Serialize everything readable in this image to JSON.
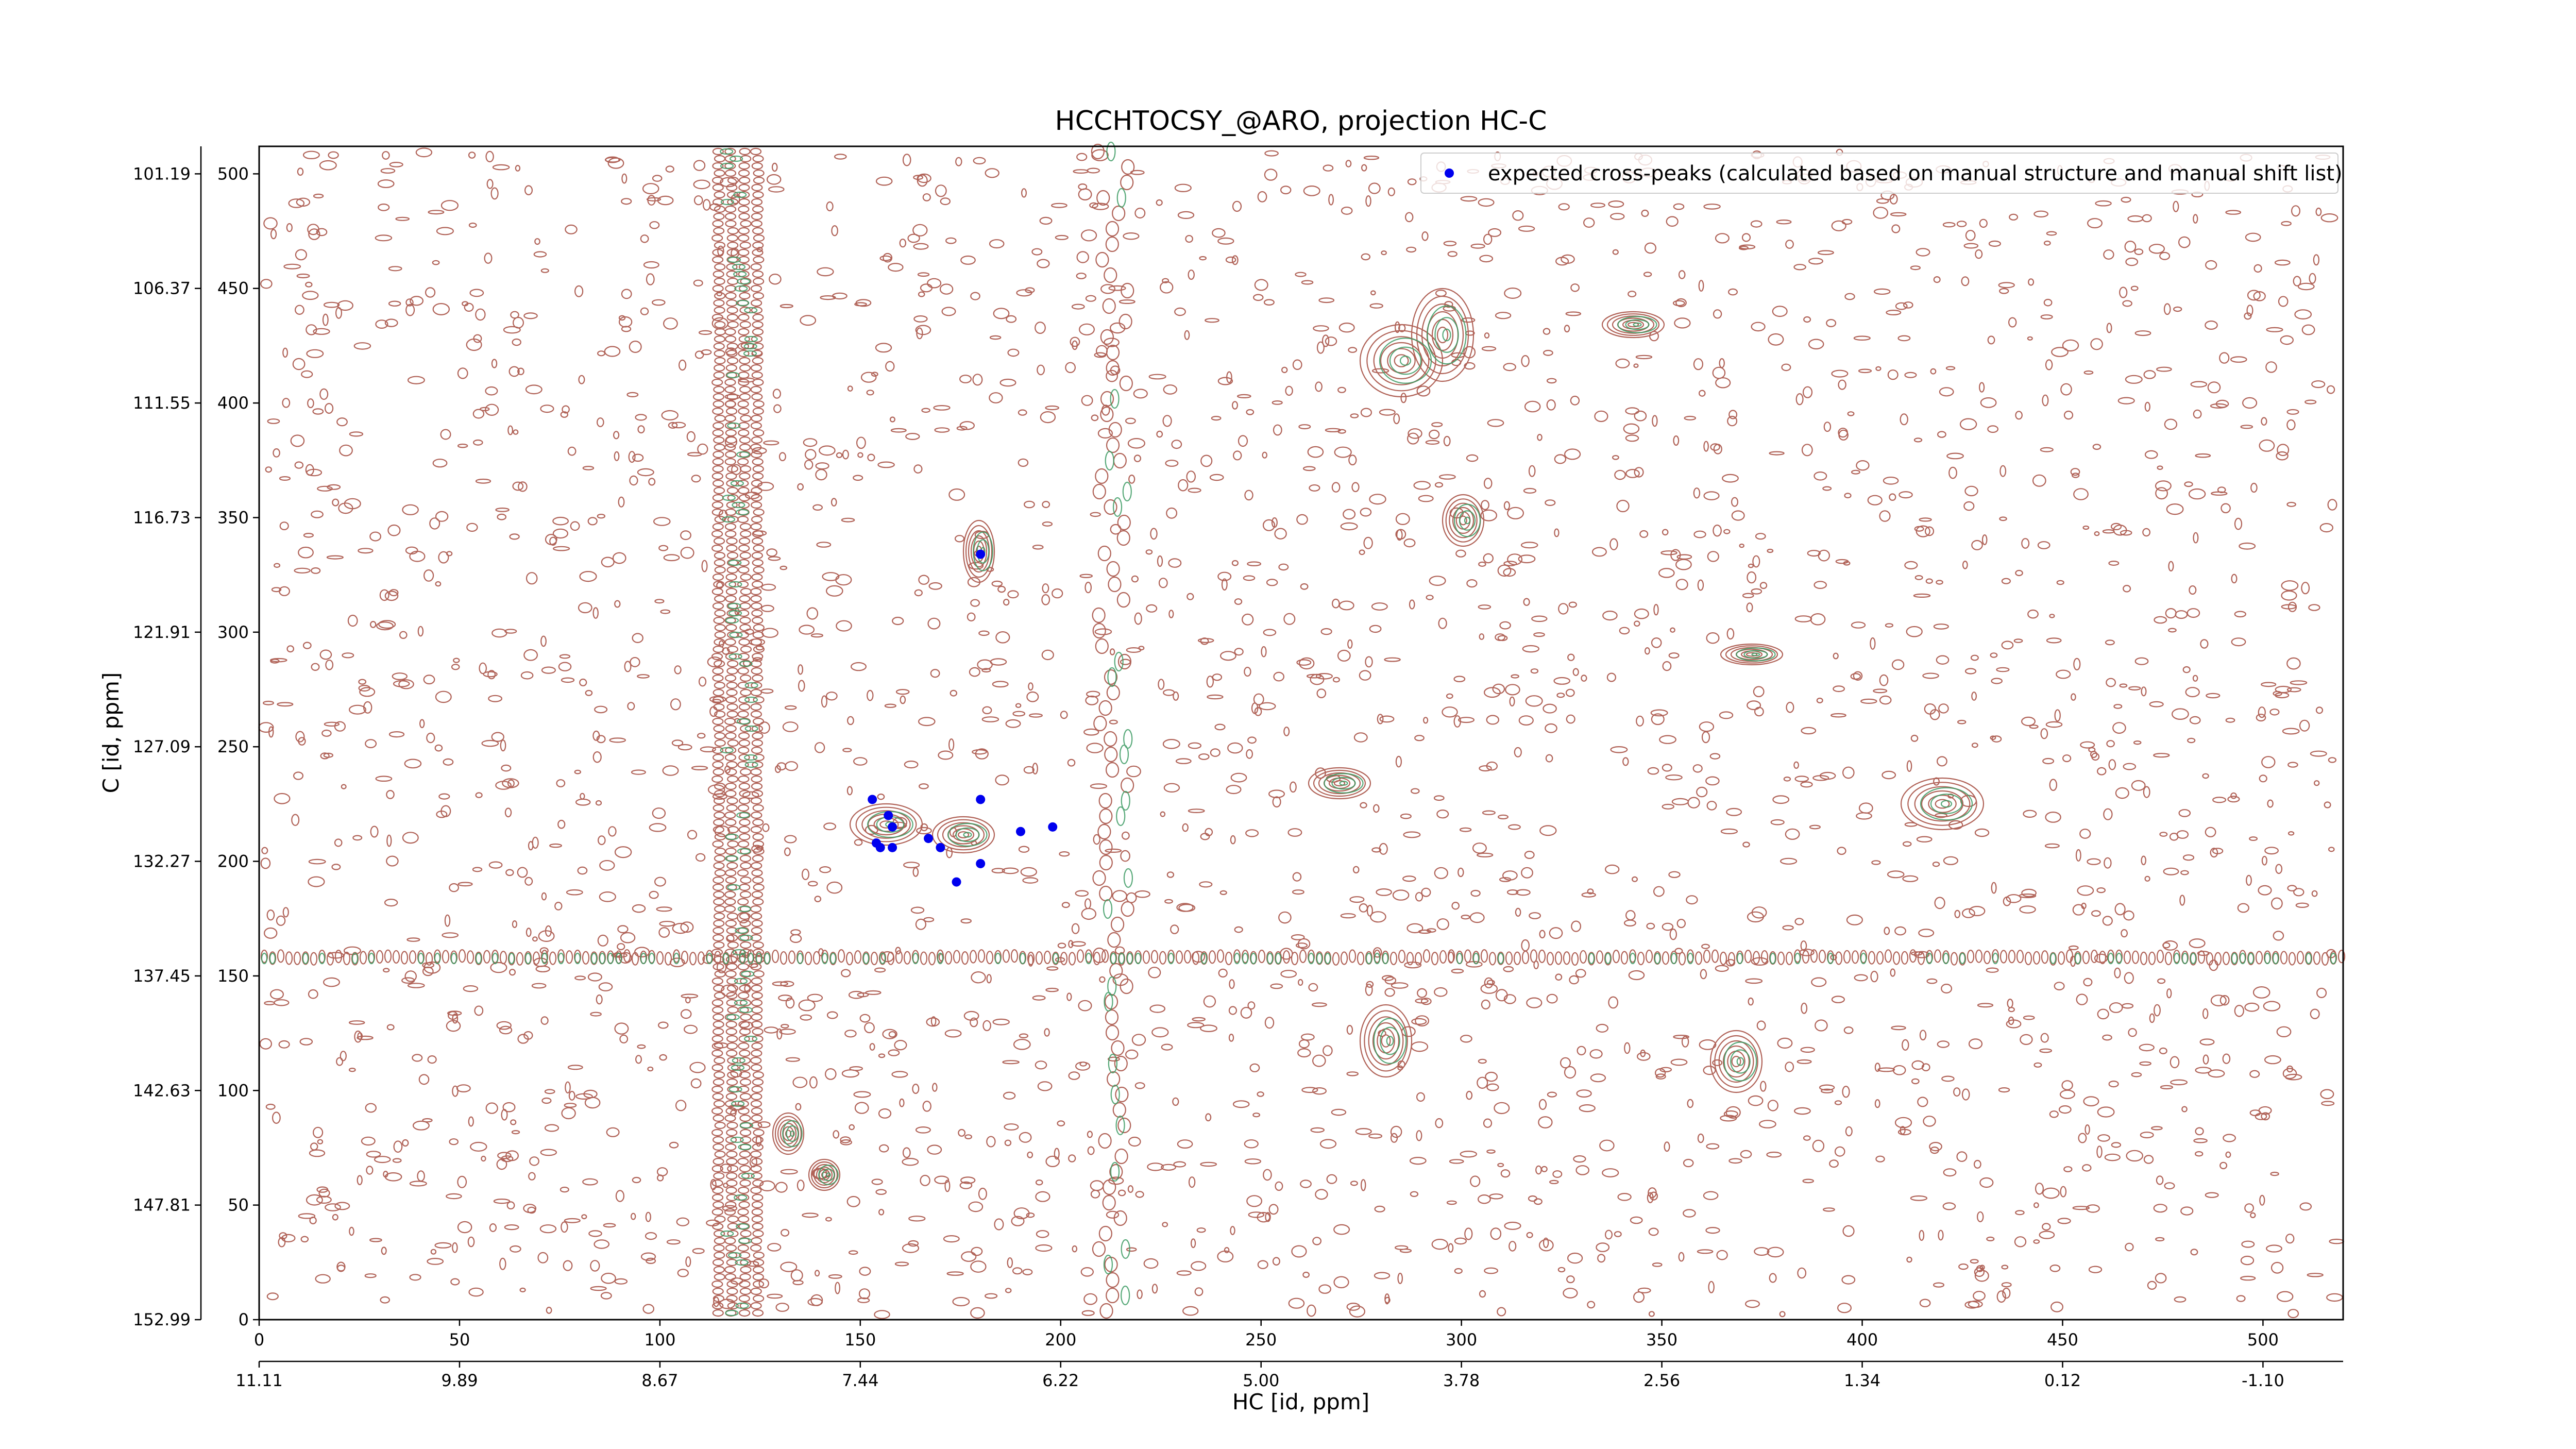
{
  "chart_data": {
    "type": "scatter",
    "title": "HCCHTOCSY_@ARO, projection HC-C",
    "x_label": "HC [id, ppm]",
    "y_label": "C [id, ppm]",
    "xlim": [
      0,
      520
    ],
    "ylim": [
      0,
      512
    ],
    "xticks": [
      0,
      50,
      100,
      150,
      200,
      250,
      300,
      350,
      400,
      450,
      500
    ],
    "yticks": [
      0,
      50,
      100,
      150,
      200,
      250,
      300,
      350,
      400,
      450,
      500
    ],
    "x2ticks": [
      {
        "value": 0,
        "label": "11.11"
      },
      {
        "value": 50,
        "label": "9.89"
      },
      {
        "value": 100,
        "label": "8.67"
      },
      {
        "value": 150,
        "label": "7.44"
      },
      {
        "value": 200,
        "label": "6.22"
      },
      {
        "value": 250,
        "label": "5.00"
      },
      {
        "value": 300,
        "label": "3.78"
      },
      {
        "value": 350,
        "label": "2.56"
      },
      {
        "value": 400,
        "label": "1.34"
      },
      {
        "value": 450,
        "label": "0.12"
      },
      {
        "value": 500,
        "label": "-1.10"
      }
    ],
    "y2ticks": [
      {
        "value": 0,
        "label": "152.99"
      },
      {
        "value": 50,
        "label": "147.81"
      },
      {
        "value": 100,
        "label": "142.63"
      },
      {
        "value": 150,
        "label": "137.45"
      },
      {
        "value": 200,
        "label": "132.27"
      },
      {
        "value": 250,
        "label": "127.09"
      },
      {
        "value": 300,
        "label": "121.91"
      },
      {
        "value": 350,
        "label": "116.73"
      },
      {
        "value": 400,
        "label": "111.55"
      },
      {
        "value": 450,
        "label": "106.37"
      },
      {
        "value": 500,
        "label": "101.19"
      }
    ],
    "legend": "upper right",
    "series": [
      {
        "name": "expected cross-peaks (calculated based on manual structure and manual shift list)",
        "color": "#0000ee",
        "x": [
          180,
          153,
          157,
          180,
          158,
          190,
          198,
          167,
          154,
          155,
          158,
          170,
          180,
          174
        ],
        "y": [
          334,
          227,
          220,
          227,
          215,
          213,
          215,
          210,
          208,
          206,
          206,
          206,
          199,
          191
        ]
      }
    ]
  }
}
